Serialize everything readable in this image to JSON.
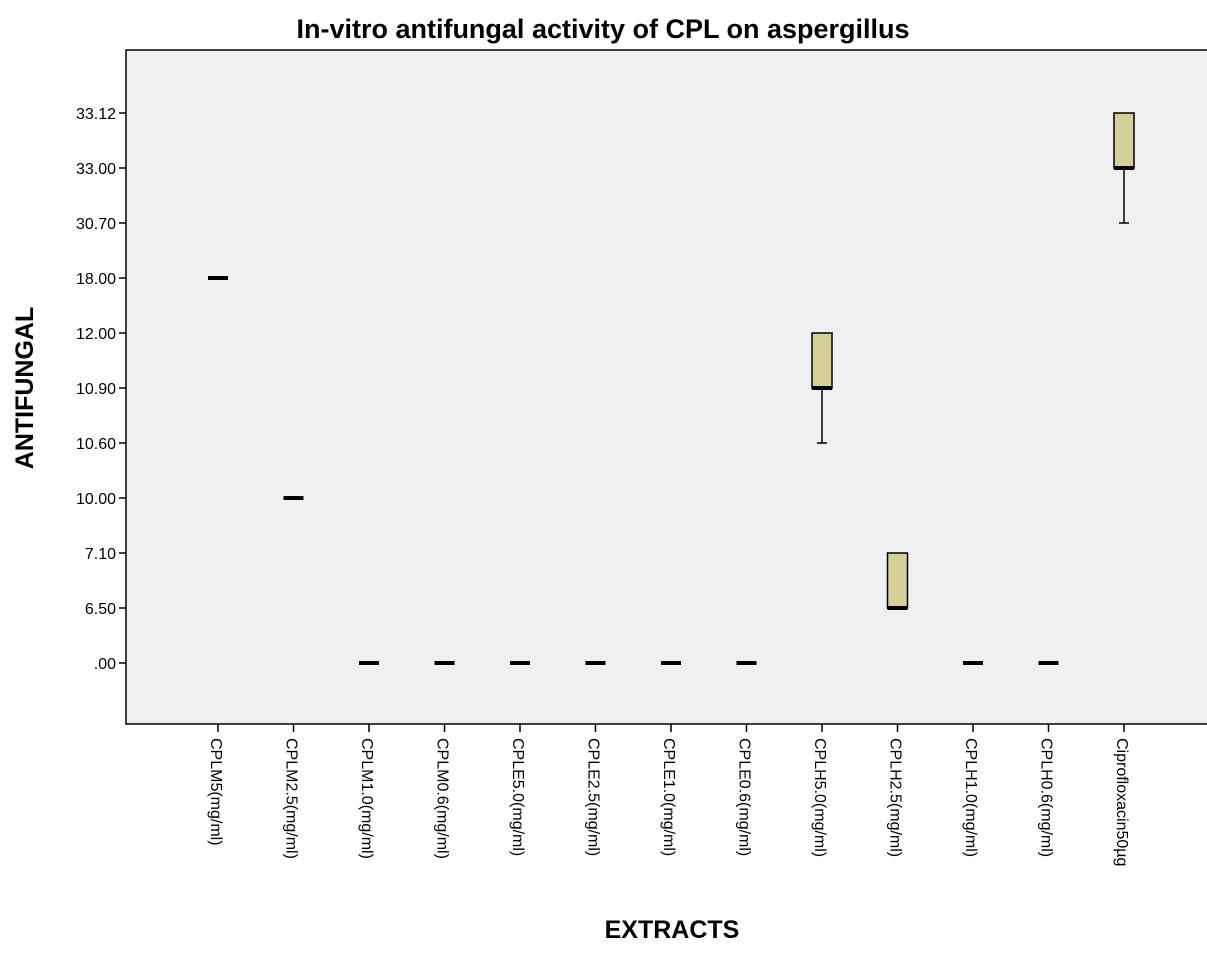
{
  "chart_data": {
    "type": "box",
    "title": "In-vitro antifungal activity of CPL on aspergillus",
    "xlabel": "EXTRACTS",
    "ylabel": "ANTIFUNGAL",
    "y_ticks": [
      ".00",
      "6.50",
      "7.10",
      "10.00",
      "10.60",
      "10.90",
      "12.00",
      "18.00",
      "30.70",
      "33.00",
      "33.12"
    ],
    "y_scale": "categorical-ordinal",
    "grid": false,
    "categories": [
      "CPLM5(mg/ml)",
      "CPLM2.5(mg/ml)",
      "CPLM1.0(mg/ml)",
      "CPLM0.6(mg/ml)",
      "CPLE5.0(mg/ml)",
      "CPLE2.5(mg/ml)",
      "CPLE1.0(mg/ml)",
      "CPLE0.6(mg/ml)",
      "CPLH5.0(mg/ml)",
      "CPLH2.5(mg/ml)",
      "CPLH1.0(mg/ml)",
      "CPLH0.6(mg/ml)",
      "Ciprofloxacin50µg"
    ],
    "boxes": [
      {
        "min": "18.00",
        "q1": "18.00",
        "median": "18.00",
        "q3": "18.00",
        "max": "18.00"
      },
      {
        "min": "10.00",
        "q1": "10.00",
        "median": "10.00",
        "q3": "10.00",
        "max": "10.00"
      },
      {
        "min": ".00",
        "q1": ".00",
        "median": ".00",
        "q3": ".00",
        "max": ".00"
      },
      {
        "min": ".00",
        "q1": ".00",
        "median": ".00",
        "q3": ".00",
        "max": ".00"
      },
      {
        "min": ".00",
        "q1": ".00",
        "median": ".00",
        "q3": ".00",
        "max": ".00"
      },
      {
        "min": ".00",
        "q1": ".00",
        "median": ".00",
        "q3": ".00",
        "max": ".00"
      },
      {
        "min": ".00",
        "q1": ".00",
        "median": ".00",
        "q3": ".00",
        "max": ".00"
      },
      {
        "min": ".00",
        "q1": ".00",
        "median": ".00",
        "q3": ".00",
        "max": ".00"
      },
      {
        "min": "10.60",
        "q1": "10.90",
        "median": "10.90",
        "q3": "12.00",
        "max": "12.00"
      },
      {
        "min": "6.50",
        "q1": "6.50",
        "median": "6.50",
        "q3": "7.10",
        "max": "7.10"
      },
      {
        "min": ".00",
        "q1": ".00",
        "median": ".00",
        "q3": ".00",
        "max": ".00"
      },
      {
        "min": ".00",
        "q1": ".00",
        "median": ".00",
        "q3": ".00",
        "max": ".00"
      },
      {
        "min": "30.70",
        "q1": "33.00",
        "median": "33.00",
        "q3": "33.12",
        "max": "33.12"
      }
    ]
  },
  "colors": {
    "plot_background": "#f0f0f0",
    "box_fill": "#d5cf98",
    "line": "#000000"
  }
}
